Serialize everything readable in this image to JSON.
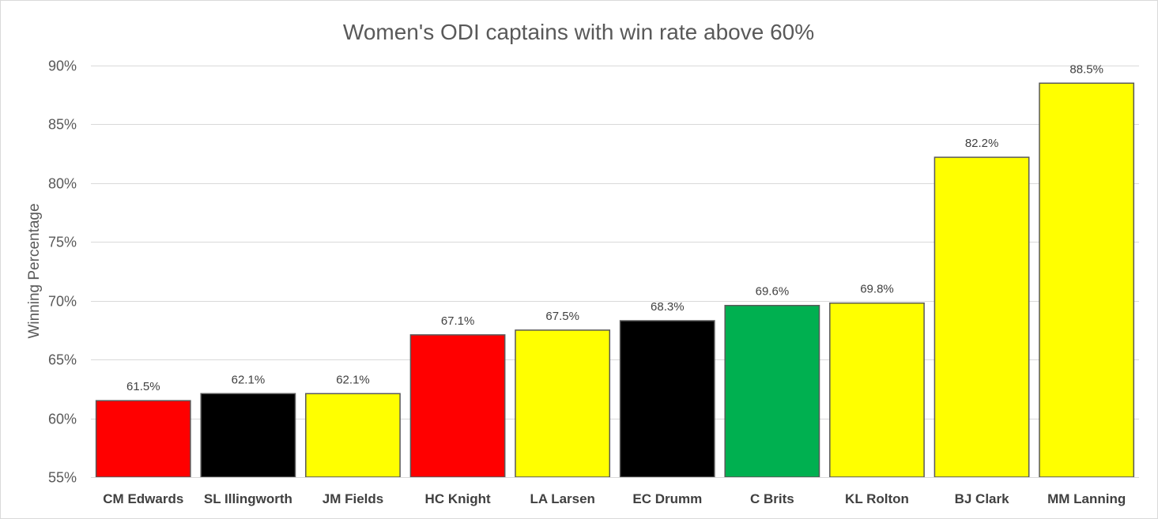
{
  "chart_data": {
    "type": "bar",
    "title": "Women's ODI captains with win rate above 60%",
    "xlabel": "",
    "ylabel": "Winning Percentage",
    "categories": [
      "CM Edwards",
      "SL Illingworth",
      "JM Fields",
      "HC Knight",
      "LA Larsen",
      "EC Drumm",
      "C Brits",
      "KL Rolton",
      "BJ Clark",
      "MM Lanning"
    ],
    "values": [
      61.5,
      62.1,
      62.1,
      67.1,
      67.5,
      68.3,
      69.6,
      69.8,
      82.2,
      88.5
    ],
    "data_labels": [
      "61.5%",
      "62.1%",
      "62.1%",
      "67.1%",
      "67.5%",
      "68.3%",
      "69.6%",
      "69.8%",
      "82.2%",
      "88.5%"
    ],
    "bar_colors": [
      "#FF0000",
      "#000000",
      "#FFFF00",
      "#FF0000",
      "#FFFF00",
      "#000000",
      "#00B050",
      "#FFFF00",
      "#FFFF00",
      "#FFFF00"
    ],
    "bar_border_color": "#595959",
    "ylim": [
      55,
      90
    ],
    "yticks": [
      55,
      60,
      65,
      70,
      75,
      80,
      85,
      90
    ],
    "ytick_labels": [
      "55%",
      "60%",
      "65%",
      "70%",
      "75%",
      "80%",
      "85%",
      "90%"
    ],
    "grid": true,
    "gridline_color": "#D9D9D9",
    "legend": "none"
  }
}
